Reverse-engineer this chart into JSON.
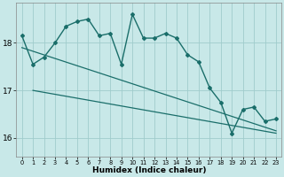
{
  "xlabel": "Humidex (Indice chaleur)",
  "bg_color": "#c8e8e8",
  "grid_color": "#a0cccc",
  "line_color": "#1a6e6a",
  "xlim": [
    -0.5,
    23.5
  ],
  "ylim": [
    15.6,
    18.85
  ],
  "yticks": [
    16,
    17,
    18
  ],
  "xticks": [
    0,
    1,
    2,
    3,
    4,
    5,
    6,
    7,
    8,
    9,
    10,
    11,
    12,
    13,
    14,
    15,
    16,
    17,
    18,
    19,
    20,
    21,
    22,
    23
  ],
  "line1_x": [
    0,
    1,
    2,
    3,
    4,
    5,
    6,
    7,
    8,
    9,
    10,
    11,
    12,
    13,
    14,
    15,
    16,
    17,
    18,
    19,
    20,
    21,
    22,
    23
  ],
  "line1_y": [
    18.15,
    17.55,
    17.7,
    18.0,
    18.35,
    18.45,
    18.5,
    18.15,
    18.2,
    17.55,
    18.6,
    18.1,
    18.1,
    18.2,
    18.1,
    17.75,
    17.6,
    17.05,
    16.75,
    16.1,
    16.6,
    16.65,
    16.35,
    16.4
  ],
  "line2_x": [
    0,
    23
  ],
  "line2_y": [
    17.9,
    16.15
  ],
  "line3_x": [
    1,
    23
  ],
  "line3_y": [
    17.0,
    16.1
  ]
}
